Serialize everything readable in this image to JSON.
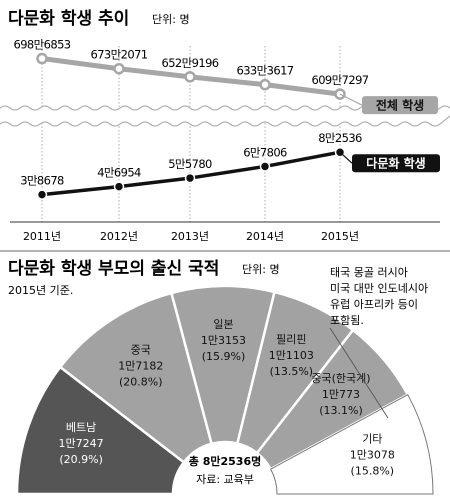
{
  "chart_data": [
    {
      "type": "line",
      "title": "다문화 학생 추이",
      "unit": "단위: 명",
      "categories": [
        "2011년",
        "2012년",
        "2013년",
        "2014년",
        "2015년"
      ],
      "series": [
        {
          "name": "전체 학생",
          "values": [
            6986853,
            6732071,
            6529196,
            6333617,
            6097297
          ],
          "labels": [
            "698만6853",
            "673만2071",
            "652만9196",
            "633만3617",
            "609만7297"
          ],
          "color": "#a6a6a6"
        },
        {
          "name": "다문화 학생",
          "values": [
            38678,
            46954,
            55780,
            67806,
            82536
          ],
          "labels": [
            "3만8678",
            "4만6954",
            "5만5780",
            "6만7806",
            "8만2536"
          ],
          "color": "#111111"
        }
      ],
      "axis_break": true,
      "grid": true
    },
    {
      "type": "pie",
      "variant": "half-donut",
      "title": "다문화 학생 부모의 출신 국적",
      "unit": "단위: 명",
      "subtitle": "2015년 기준.",
      "slices": [
        {
          "name": "베트남",
          "value_label": "1만7247",
          "value": 17247,
          "percent_label": "(20.9%)",
          "percent": 20.9,
          "color": "#555555"
        },
        {
          "name": "중국",
          "value_label": "1만7182",
          "value": 17182,
          "percent_label": "(20.8%)",
          "percent": 20.8,
          "color": "#a2a2a2"
        },
        {
          "name": "일본",
          "value_label": "1만3153",
          "value": 13153,
          "percent_label": "(15.9%)",
          "percent": 15.9,
          "color": "#a2a2a2"
        },
        {
          "name": "필리핀",
          "value_label": "1만1103",
          "value": 11103,
          "percent_label": "(13.5%)",
          "percent": 13.5,
          "color": "#a2a2a2"
        },
        {
          "name": "중국(한국계)",
          "value_label": "1만773",
          "value": 10773,
          "percent_label": "(13.1%)",
          "percent": 13.1,
          "color": "#a2a2a2"
        },
        {
          "name": "기타",
          "value_label": "1만3078",
          "value": 13078,
          "percent_label": "(15.8%)",
          "percent": 15.8,
          "color": "#ffffff"
        }
      ],
      "total_label": "총 8만2536명",
      "source": "자료: 교육부",
      "note_lines": [
        "태국 몽골 러시아",
        "미국 대만 인도네시아",
        "유럽 아프리카 등이",
        "포함됨."
      ]
    }
  ]
}
